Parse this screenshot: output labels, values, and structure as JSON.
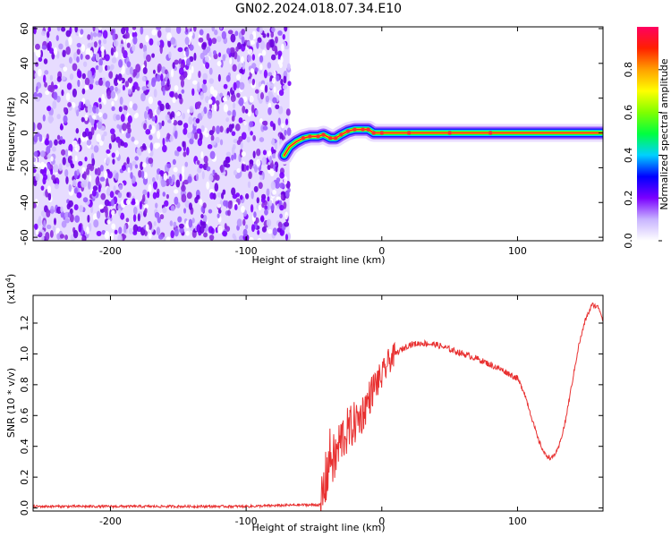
{
  "title": "GN02.2024.018.07.34.E10",
  "chart_data": [
    {
      "type": "heatmap",
      "xlabel": "Height of straight line (km)",
      "ylabel": "Frequency (Hz)",
      "xlim": [
        -257,
        163
      ],
      "ylim": [
        -62,
        61
      ],
      "x_ticks": [
        -200,
        -100,
        0,
        100
      ],
      "y_ticks": [
        -60,
        -40,
        -20,
        0,
        20,
        40,
        60
      ],
      "noise_region": {
        "x": [
          -257,
          -68
        ],
        "y": [
          -62,
          61
        ]
      },
      "signal_track": [
        {
          "x": -72,
          "y": -13
        },
        {
          "x": -68,
          "y": -8
        },
        {
          "x": -63,
          "y": -5
        },
        {
          "x": -58,
          "y": -3
        },
        {
          "x": -53,
          "y": -2
        },
        {
          "x": -47,
          "y": -2
        },
        {
          "x": -43,
          "y": -1
        },
        {
          "x": -38,
          "y": -3
        },
        {
          "x": -34,
          "y": -3
        },
        {
          "x": -30,
          "y": -1
        },
        {
          "x": -25,
          "y": 1
        },
        {
          "x": -20,
          "y": 2
        },
        {
          "x": -14,
          "y": 2
        },
        {
          "x": -10,
          "y": 2
        },
        {
          "x": -6,
          "y": 0
        },
        {
          "x": 0,
          "y": 0
        },
        {
          "x": 20,
          "y": 0
        },
        {
          "x": 50,
          "y": 0
        },
        {
          "x": 80,
          "y": 0
        },
        {
          "x": 110,
          "y": 0
        },
        {
          "x": 140,
          "y": 0
        },
        {
          "x": 163,
          "y": 0
        }
      ],
      "colorbar": {
        "label": "Normalized spectral amplitude",
        "ticks": [
          0.0,
          0.2,
          0.4,
          0.6,
          0.8
        ],
        "tick_labels": [
          "0.0",
          "0.2",
          "0.4",
          "0.6",
          "0.8"
        ],
        "range": [
          0,
          1
        ],
        "colors": [
          "#ffffff",
          "#c8b4ff",
          "#7a00ff",
          "#0000ff",
          "#00d0ff",
          "#00ff40",
          "#80ff00",
          "#ffff00",
          "#ffa000",
          "#ff2000",
          "#ff0060"
        ]
      }
    },
    {
      "type": "line",
      "xlabel": "Height of straight line (km)",
      "ylabel": "SNR (10 * v/v)",
      "y_multiplier": "(x10",
      "y_multiplier_exp": "4",
      "y_multiplier_close": ")",
      "xlim": [
        -257,
        163
      ],
      "ylim": [
        -0.02,
        1.38
      ],
      "x_ticks": [
        -200,
        -100,
        0,
        100
      ],
      "y_ticks": [
        0.0,
        0.2,
        0.4,
        0.6,
        0.8,
        1.0,
        1.2
      ],
      "y_tick_labels": [
        "0.0",
        "0.2",
        "0.4",
        "0.6",
        "0.8",
        "1.0",
        "1.2"
      ],
      "color": "#e83030",
      "series": [
        {
          "x": [
            -257,
            -200,
            -150,
            -100,
            -60,
            -45,
            -42,
            -38,
            -35,
            -30,
            -25,
            -20,
            -15,
            -10,
            -5,
            0,
            5,
            10,
            15,
            20,
            30,
            40,
            50,
            60,
            70,
            80,
            90,
            100,
            105,
            110,
            115,
            120,
            125,
            130,
            135,
            140,
            145,
            150,
            155,
            160,
            163
          ],
          "y": [
            0.01,
            0.01,
            0.01,
            0.01,
            0.02,
            0.02,
            0.15,
            0.35,
            0.3,
            0.45,
            0.5,
            0.55,
            0.6,
            0.7,
            0.8,
            0.85,
            0.95,
            1.0,
            1.03,
            1.06,
            1.07,
            1.06,
            1.03,
            1.0,
            0.97,
            0.93,
            0.89,
            0.84,
            0.75,
            0.6,
            0.45,
            0.35,
            0.32,
            0.38,
            0.55,
            0.8,
            1.05,
            1.22,
            1.32,
            1.3,
            1.22
          ]
        }
      ]
    }
  ]
}
